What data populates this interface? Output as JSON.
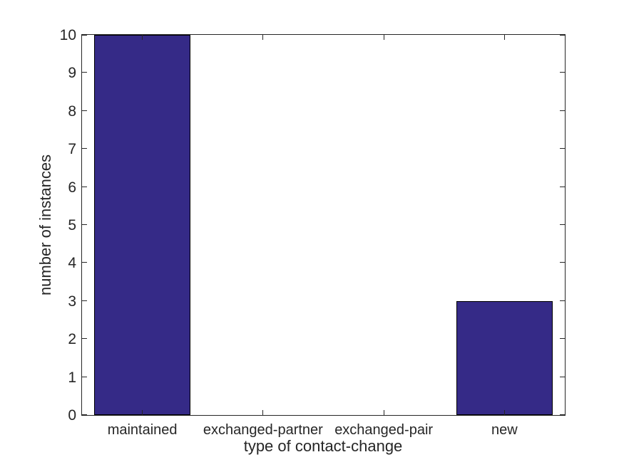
{
  "chart_data": {
    "type": "bar",
    "categories": [
      "maintained",
      "exchanged-partner",
      "exchanged-pair",
      "new"
    ],
    "values": [
      10,
      0,
      0,
      3
    ],
    "title": "",
    "xlabel": "type of contact-change",
    "ylabel": "number of instances",
    "ylim": [
      0,
      10
    ],
    "yticks": [
      0,
      1,
      2,
      3,
      4,
      5,
      6,
      7,
      8,
      9,
      10
    ],
    "bar_width_fraction": 0.8,
    "grid": false,
    "legend": null,
    "box": true,
    "tick_direction": "in",
    "colors": {
      "bar_fill": "#352A87",
      "bar_edge": "#000000",
      "axis": "#262626",
      "text": "#262626",
      "background": "#FFFFFF"
    }
  }
}
